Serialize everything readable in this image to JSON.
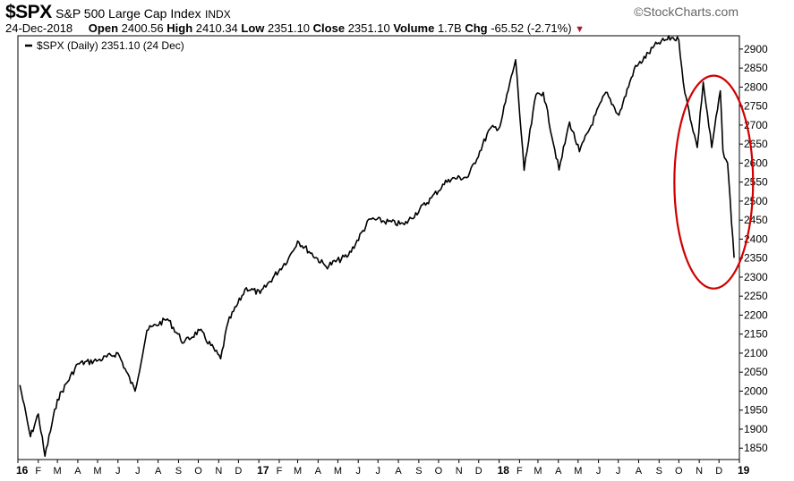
{
  "header": {
    "symbol": "$SPX",
    "name": "S&P 500 Large Cap Index",
    "exchange": "INDX",
    "brand": "©StockCharts.com",
    "date": "24-Dec-2018",
    "open_label": "Open",
    "open": "2400.56",
    "high_label": "High",
    "high": "2410.34",
    "low_label": "Low",
    "low": "2351.10",
    "close_label": "Close",
    "close": "2351.10",
    "volume_label": "Volume",
    "volume": "1.7B",
    "chg_label": "Chg",
    "chg": "-65.52 (-2.71%)",
    "down_color": "#b0172b"
  },
  "legend": {
    "text": "$SPX (Daily) 2351.10 (24 Dec)"
  },
  "chart_data": {
    "type": "line",
    "series": [
      {
        "name": "$SPX (Daily)",
        "x": [
          "2016-01-04",
          "2016-01-20",
          "2016-02-01",
          "2016-02-11",
          "2016-03-01",
          "2016-04-01",
          "2016-05-02",
          "2016-06-01",
          "2016-06-27",
          "2016-07-15",
          "2016-08-15",
          "2016-09-09",
          "2016-10-03",
          "2016-11-04",
          "2016-11-15",
          "2016-12-13",
          "2017-01-03",
          "2017-02-15",
          "2017-03-01",
          "2017-04-13",
          "2017-05-17",
          "2017-06-19",
          "2017-08-10",
          "2017-09-20",
          "2017-10-16",
          "2017-11-15",
          "2017-12-18",
          "2018-01-02",
          "2018-01-26",
          "2018-02-08",
          "2018-02-26",
          "2018-03-09",
          "2018-04-02",
          "2018-04-18",
          "2018-05-03",
          "2018-06-12",
          "2018-07-02",
          "2018-07-25",
          "2018-08-29",
          "2018-09-20",
          "2018-10-01",
          "2018-10-10",
          "2018-10-29",
          "2018-11-07",
          "2018-11-20",
          "2018-12-03",
          "2018-12-07",
          "2018-12-14",
          "2018-12-24"
        ],
        "values": [
          2016,
          1880,
          1940,
          1829,
          1978,
          2072,
          2081,
          2100,
          2000,
          2160,
          2190,
          2127,
          2160,
          2085,
          2180,
          2272,
          2257,
          2349,
          2395,
          2328,
          2357,
          2453,
          2438,
          2508,
          2557,
          2564,
          2690,
          2695,
          2872,
          2581,
          2780,
          2786,
          2582,
          2708,
          2630,
          2786,
          2726,
          2846,
          2914,
          2930,
          2924,
          2785,
          2641,
          2813,
          2641,
          2790,
          2633,
          2600,
          2351
        ]
      }
    ],
    "x_ticks": [
      "16",
      "F",
      "M",
      "A",
      "M",
      "J",
      "J",
      "A",
      "S",
      "O",
      "N",
      "D",
      "17",
      "F",
      "M",
      "A",
      "M",
      "J",
      "J",
      "A",
      "S",
      "O",
      "N",
      "D",
      "18",
      "F",
      "M",
      "A",
      "M",
      "J",
      "J",
      "A",
      "S",
      "O",
      "N",
      "D",
      "19"
    ],
    "y_ticks": [
      1850,
      1900,
      1950,
      2000,
      2050,
      2100,
      2150,
      2200,
      2250,
      2300,
      2350,
      2400,
      2450,
      2500,
      2550,
      2600,
      2650,
      2700,
      2750,
      2800,
      2850,
      2900
    ],
    "ylim": [
      1820,
      2935
    ],
    "xlim": [
      "2016-01-01",
      "2019-01-01"
    ],
    "grid": false,
    "annotation": {
      "shape": "ellipse",
      "color": "#d10000",
      "from": "2018-10-01",
      "to": "2018-12-31",
      "y_from": 2270,
      "y_to": 2830
    }
  }
}
